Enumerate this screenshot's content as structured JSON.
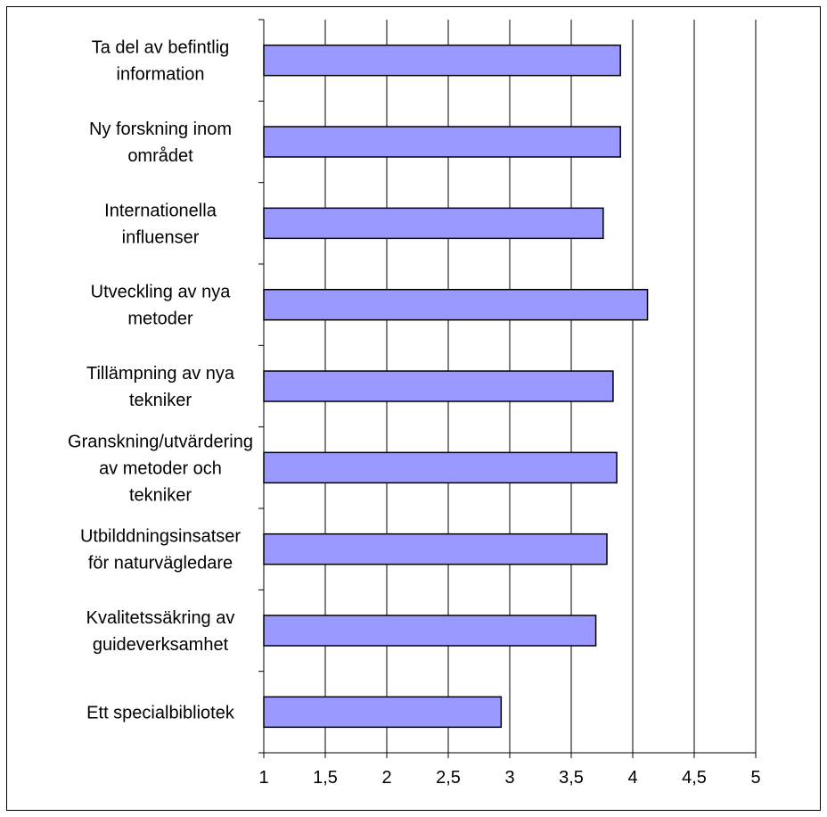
{
  "chart_data": {
    "type": "bar",
    "orientation": "horizontal",
    "categories": [
      [
        "Ta del av befintlig",
        "information"
      ],
      [
        "Ny forskning inom",
        "området"
      ],
      [
        "Internationella",
        "influenser"
      ],
      [
        "Utveckling av nya",
        "metoder"
      ],
      [
        "Tillämpning av nya",
        "tekniker"
      ],
      [
        "Granskning/utvärdering",
        "av metoder och",
        "tekniker"
      ],
      [
        "Utbilddningsinsatser",
        "för naturvägledare"
      ],
      [
        "Kvalitetssäkring av",
        "guideverksamhet"
      ],
      [
        "Ett specialbibliotek"
      ]
    ],
    "values": [
      3.9,
      3.9,
      3.76,
      4.12,
      3.84,
      3.87,
      3.79,
      3.7,
      2.93
    ],
    "xlim": [
      1,
      5
    ],
    "xticks": [
      1,
      1.5,
      2,
      2.5,
      3,
      3.5,
      4,
      4.5,
      5
    ],
    "xtick_labels": [
      "1",
      "1,5",
      "2",
      "2,5",
      "3",
      "3,5",
      "4",
      "4,5",
      "5"
    ],
    "grid": "vertical",
    "bar_color": "#9999ff",
    "bar_border_color": "#000000",
    "title": "",
    "xlabel": "",
    "ylabel": ""
  }
}
